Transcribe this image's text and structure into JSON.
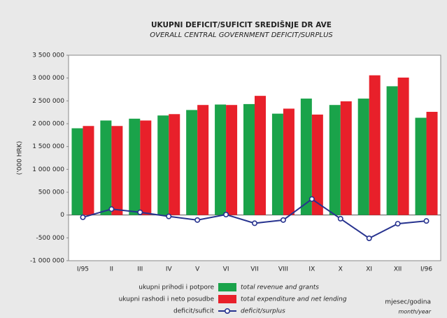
{
  "chart_data": {
    "type": "bar",
    "title": "UKUPNI DEFICIT/SUFICIT SREDIŠNJE DR  AVE",
    "subtitle": "OVERALL CENTRAL GOVERNMENT DEFICIT/SURPLUS",
    "y_label": "('000 HRK)",
    "x_label": "mjesec/godina",
    "x_label_en": "month/year",
    "categories": [
      "I/95",
      "II",
      "III",
      "IV",
      "V",
      "VI",
      "VII",
      "VIII",
      "IX",
      "X",
      "XI",
      "XII",
      "I/96"
    ],
    "series": [
      {
        "name": "ukupni prihodi i potpore",
        "name_en": "total revenue and grants",
        "type": "bar",
        "color": "#1aa34a",
        "values": [
          1900000,
          2070000,
          2110000,
          2180000,
          2300000,
          2420000,
          2430000,
          2220000,
          2550000,
          2410000,
          2550000,
          2820000,
          2130000
        ]
      },
      {
        "name": "ukupni rashodi i neto posudbe",
        "name_en": "total expenditure and net lending",
        "type": "bar",
        "color": "#e8202a",
        "values": [
          1950000,
          1950000,
          2070000,
          2210000,
          2410000,
          2410000,
          2610000,
          2330000,
          2200000,
          2490000,
          3060000,
          3010000,
          2260000
        ]
      },
      {
        "name": "deficit/suficit",
        "name_en": "deficit/surplus",
        "type": "line",
        "color": "#27338f",
        "values": [
          -50000,
          130000,
          60000,
          -30000,
          -110000,
          10000,
          -180000,
          -110000,
          350000,
          -80000,
          -510000,
          -190000,
          -130000
        ]
      }
    ],
    "ylim": [
      -1000000,
      3500000
    ],
    "yticks": [
      {
        "value": -1000000,
        "label": "-1 000 000"
      },
      {
        "value": -500000,
        "label": "-500 000"
      },
      0,
      {
        "value": 500000,
        "label": "500 000"
      },
      {
        "value": 1000000,
        "label": "1 000 000"
      },
      {
        "value": 1500000,
        "label": "1 500 000"
      },
      {
        "value": 2000000,
        "label": "2 000 000"
      },
      {
        "value": 2500000,
        "label": "2 500 000"
      },
      {
        "value": 3000000,
        "label": "3 000 000"
      },
      {
        "value": 3500000,
        "label": "3 500 000"
      }
    ]
  }
}
